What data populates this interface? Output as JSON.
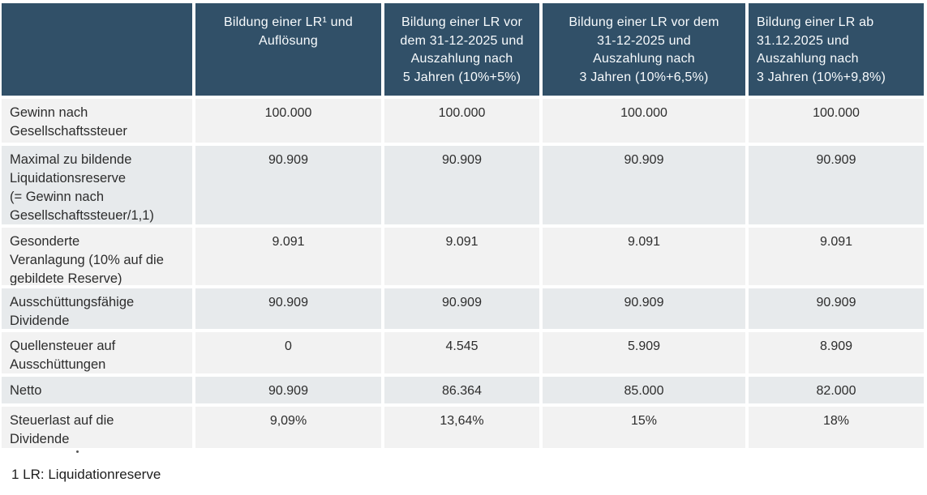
{
  "colors": {
    "header-bg": "#315068",
    "header-text": "#f8fbfd",
    "row-light": "#f2f2f2",
    "row-alt": "#e7eaec",
    "body-text": "#2d2d2d"
  },
  "table": {
    "header": {
      "corner": "",
      "col1": "Bildung einer LR¹ und\nAuflösung",
      "col2": "Bildung einer LR vor\ndem 31-12-2025 und\nAuszahlung nach\n5 Jahren (10%+5%)",
      "col3": "Bildung einer LR vor dem\n31-12-2025 und\nAuszahlung nach\n3 Jahren (10%+6,5%)",
      "col4": "Bildung einer LR ab\n31.12.2025 und\nAuszahlung nach\n3 Jahren (10%+9,8%)"
    },
    "rows": [
      {
        "label": "Gewinn nach\nGesellschaftssteuer",
        "values": [
          "100.000",
          "100.000",
          "100.000",
          "100.000"
        ]
      },
      {
        "label": "Maximal zu bildende\nLiquidationsreserve\n(= Gewinn nach\nGesellschaftssteuer/1,1)",
        "values": [
          "90.909",
          "90.909",
          "90.909",
          "90.909"
        ]
      },
      {
        "label": "Gesonderte\nVeranlagung (10% auf die\ngebildete Reserve)",
        "values": [
          "9.091",
          "9.091",
          "9.091",
          "9.091"
        ]
      },
      {
        "label": "Ausschüttungsfähige\nDividende",
        "values": [
          "90.909",
          "90.909",
          "90.909",
          "90.909"
        ]
      },
      {
        "label": "Quellensteuer auf\nAusschüttungen",
        "values": [
          "0",
          "4.545",
          "5.909",
          "8.909"
        ]
      },
      {
        "label": "Netto",
        "values": [
          "90.909",
          "86.364",
          "85.000",
          "82.000"
        ]
      },
      {
        "label": "Steuerlast auf die\nDividende",
        "values": [
          "9,09%",
          "13,64%",
          "15%",
          "18%"
        ]
      }
    ],
    "footnote": "1 LR: Liquidationreserve"
  }
}
